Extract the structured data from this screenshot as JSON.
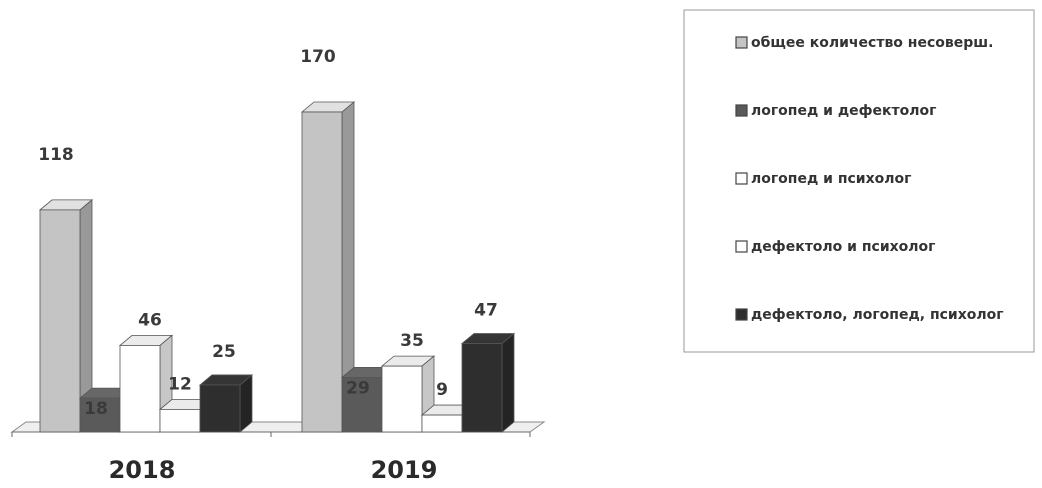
{
  "chart_data": {
    "type": "bar",
    "categories": [
      "2018",
      "2019"
    ],
    "series": [
      {
        "name": "общее количество несоверш.",
        "values": [
          118,
          170
        ],
        "color": "#c4c4c4"
      },
      {
        "name": "логопед и дефектолог",
        "values": [
          18,
          29
        ],
        "color": "#5a5a5a"
      },
      {
        "name": "логопед и психолог",
        "values": [
          46,
          35
        ],
        "color": "#ffffff"
      },
      {
        "name": "дефектоло и психолог",
        "values": [
          12,
          9
        ],
        "color": "#ffffff"
      },
      {
        "name": "дефектоло, логопед, психолог",
        "values": [
          25,
          47
        ],
        "color": "#2e2e2e"
      }
    ],
    "ylim": [
      0,
      170
    ],
    "legend_position": "right",
    "grid": false,
    "style": "3d-columns"
  }
}
